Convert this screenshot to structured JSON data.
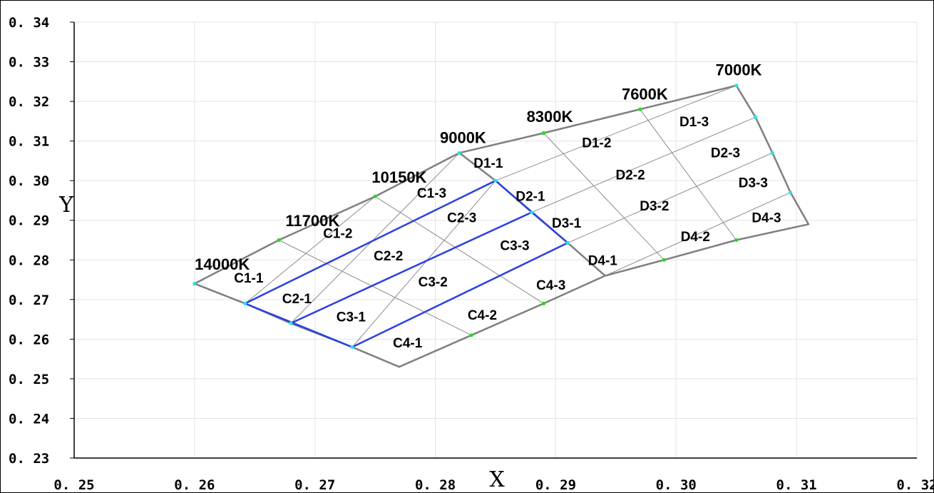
{
  "chart_data": {
    "type": "line",
    "xlabel": "X",
    "ylabel": "Y",
    "xlim": [
      0.25,
      0.32
    ],
    "ylim": [
      0.23,
      0.34
    ],
    "grid": true,
    "x_ticks": [
      "0. 25",
      "0. 26",
      "0. 27",
      "0. 28",
      "0. 29",
      "0. 30",
      "0. 31",
      "0. 32"
    ],
    "y_ticks": [
      "0. 34",
      "0. 33",
      "0. 32",
      "0. 31",
      "0. 30",
      "0. 29",
      "0. 28",
      "0. 27",
      "0. 26",
      "0. 25",
      "0. 24",
      "0. 23"
    ],
    "x_tick_values": [
      0.25,
      0.26,
      0.27,
      0.28,
      0.29,
      0.3,
      0.31,
      0.32
    ],
    "y_tick_values": [
      0.34,
      0.33,
      0.32,
      0.31,
      0.3,
      0.29,
      0.28,
      0.27,
      0.26,
      0.25,
      0.24,
      0.23
    ],
    "colors": {
      "outline": "#7f7f7f",
      "inner_grid": "#8c8c8c",
      "highlight": "#2a3fe0",
      "point_cyan": "#1ee6e6",
      "point_green": "#22dd22",
      "gridline": "#e3e3e3"
    },
    "outline_lines": [
      {
        "name": "outer-boundary",
        "points": [
          [
            0.26,
            0.274
          ],
          [
            0.267,
            0.285
          ],
          [
            0.275,
            0.296
          ],
          [
            0.282,
            0.307
          ],
          [
            0.289,
            0.312
          ],
          [
            0.297,
            0.318
          ],
          [
            0.305,
            0.324
          ],
          [
            0.3066,
            0.316
          ],
          [
            0.308,
            0.307
          ],
          [
            0.3095,
            0.297
          ],
          [
            0.311,
            0.289
          ],
          [
            0.305,
            0.285
          ],
          [
            0.299,
            0.28
          ],
          [
            0.2941,
            0.276
          ],
          [
            0.289,
            0.269
          ],
          [
            0.283,
            0.261
          ],
          [
            0.277,
            0.253
          ],
          [
            0.2731,
            0.258
          ],
          [
            0.268,
            0.264
          ],
          [
            0.2642,
            0.269
          ],
          [
            0.26,
            0.274
          ]
        ]
      },
      {
        "name": "c-d-boundary",
        "points": [
          [
            0.282,
            0.307
          ],
          [
            0.285,
            0.3
          ],
          [
            0.288,
            0.292
          ],
          [
            0.291,
            0.2843
          ],
          [
            0.2941,
            0.276
          ]
        ]
      }
    ],
    "inner_lines": [
      [
        [
          0.2642,
          0.269
        ],
        [
          0.275,
          0.296
        ]
      ],
      [
        [
          0.268,
          0.264
        ],
        [
          0.282,
          0.307
        ]
      ],
      [
        [
          0.2731,
          0.258
        ],
        [
          0.285,
          0.3
        ]
      ],
      [
        [
          0.267,
          0.285
        ],
        [
          0.283,
          0.261
        ]
      ],
      [
        [
          0.275,
          0.296
        ],
        [
          0.289,
          0.269
        ]
      ],
      [
        [
          0.2642,
          0.269
        ],
        [
          0.285,
          0.3
        ]
      ],
      [
        [
          0.268,
          0.264
        ],
        [
          0.288,
          0.292
        ]
      ],
      [
        [
          0.2731,
          0.258
        ],
        [
          0.291,
          0.2843
        ]
      ],
      [
        [
          0.285,
          0.3
        ],
        [
          0.305,
          0.324
        ]
      ],
      [
        [
          0.288,
          0.292
        ],
        [
          0.3066,
          0.316
        ]
      ],
      [
        [
          0.291,
          0.2843
        ],
        [
          0.308,
          0.307
        ]
      ],
      [
        [
          0.2941,
          0.276
        ],
        [
          0.3095,
          0.297
        ]
      ],
      [
        [
          0.289,
          0.312
        ],
        [
          0.299,
          0.28
        ]
      ],
      [
        [
          0.297,
          0.318
        ],
        [
          0.305,
          0.285
        ]
      ]
    ],
    "highlight_lines": [
      [
        [
          0.2642,
          0.269
        ],
        [
          0.285,
          0.3
        ]
      ],
      [
        [
          0.285,
          0.3
        ],
        [
          0.291,
          0.2843
        ]
      ],
      [
        [
          0.291,
          0.2843
        ],
        [
          0.2731,
          0.258
        ]
      ],
      [
        [
          0.2731,
          0.258
        ],
        [
          0.2642,
          0.269
        ]
      ],
      [
        [
          0.268,
          0.264
        ],
        [
          0.288,
          0.292
        ]
      ]
    ],
    "points": [
      {
        "x": 0.26,
        "y": 0.274,
        "color": "cyan"
      },
      {
        "x": 0.267,
        "y": 0.285,
        "color": "green"
      },
      {
        "x": 0.275,
        "y": 0.296,
        "color": "green"
      },
      {
        "x": 0.282,
        "y": 0.307,
        "color": "cyan"
      },
      {
        "x": 0.289,
        "y": 0.312,
        "color": "green"
      },
      {
        "x": 0.297,
        "y": 0.318,
        "color": "green"
      },
      {
        "x": 0.305,
        "y": 0.324,
        "color": "cyan"
      },
      {
        "x": 0.3066,
        "y": 0.316,
        "color": "cyan"
      },
      {
        "x": 0.308,
        "y": 0.307,
        "color": "cyan"
      },
      {
        "x": 0.3095,
        "y": 0.297,
        "color": "cyan"
      },
      {
        "x": 0.305,
        "y": 0.285,
        "color": "green"
      },
      {
        "x": 0.299,
        "y": 0.28,
        "color": "green"
      },
      {
        "x": 0.289,
        "y": 0.269,
        "color": "green"
      },
      {
        "x": 0.283,
        "y": 0.261,
        "color": "green"
      },
      {
        "x": 0.2731,
        "y": 0.258,
        "color": "cyan"
      },
      {
        "x": 0.268,
        "y": 0.264,
        "color": "cyan"
      },
      {
        "x": 0.2642,
        "y": 0.269,
        "color": "cyan"
      },
      {
        "x": 0.285,
        "y": 0.3,
        "color": "cyan"
      },
      {
        "x": 0.288,
        "y": 0.292,
        "color": "cyan"
      },
      {
        "x": 0.291,
        "y": 0.2843,
        "color": "cyan"
      }
    ],
    "cct_labels": [
      {
        "text": "14000K",
        "x": 0.2623,
        "y": 0.2775
      },
      {
        "text": "11700K",
        "x": 0.2698,
        "y": 0.2885
      },
      {
        "text": "10150K",
        "x": 0.277,
        "y": 0.2995
      },
      {
        "text": "9000K",
        "x": 0.2823,
        "y": 0.3095
      },
      {
        "text": "8300K",
        "x": 0.2895,
        "y": 0.3148
      },
      {
        "text": "7600K",
        "x": 0.2974,
        "y": 0.3205
      },
      {
        "text": "7000K",
        "x": 0.3052,
        "y": 0.3266
      }
    ],
    "bin_labels": [
      {
        "text": "C1-1",
        "x": 0.2645,
        "y": 0.2753
      },
      {
        "text": "C1-2",
        "x": 0.2719,
        "y": 0.2865
      },
      {
        "text": "C1-3",
        "x": 0.2797,
        "y": 0.2967
      },
      {
        "text": "C2-1",
        "x": 0.2685,
        "y": 0.2701
      },
      {
        "text": "C2-2",
        "x": 0.2761,
        "y": 0.2809
      },
      {
        "text": "C2-3",
        "x": 0.2822,
        "y": 0.2905
      },
      {
        "text": "C3-1",
        "x": 0.273,
        "y": 0.2655
      },
      {
        "text": "C3-2",
        "x": 0.2798,
        "y": 0.2743
      },
      {
        "text": "C3-3",
        "x": 0.2866,
        "y": 0.2835
      },
      {
        "text": "C4-1",
        "x": 0.2777,
        "y": 0.2589
      },
      {
        "text": "C4-2",
        "x": 0.2839,
        "y": 0.2659
      },
      {
        "text": "C4-3",
        "x": 0.2896,
        "y": 0.2735
      },
      {
        "text": "D1-1",
        "x": 0.2844,
        "y": 0.3043
      },
      {
        "text": "D1-2",
        "x": 0.2934,
        "y": 0.3094
      },
      {
        "text": "D1-3",
        "x": 0.3015,
        "y": 0.3147
      },
      {
        "text": "D2-1",
        "x": 0.2879,
        "y": 0.2959
      },
      {
        "text": "D2-2",
        "x": 0.2962,
        "y": 0.3013
      },
      {
        "text": "D2-3",
        "x": 0.3041,
        "y": 0.3069
      },
      {
        "text": "D3-1",
        "x": 0.2909,
        "y": 0.2891
      },
      {
        "text": "D3-2",
        "x": 0.2982,
        "y": 0.2935
      },
      {
        "text": "D3-3",
        "x": 0.3064,
        "y": 0.2993
      },
      {
        "text": "D4-1",
        "x": 0.2939,
        "y": 0.2797
      },
      {
        "text": "D4-2",
        "x": 0.3016,
        "y": 0.2857
      },
      {
        "text": "D4-3",
        "x": 0.3075,
        "y": 0.2905
      }
    ]
  }
}
